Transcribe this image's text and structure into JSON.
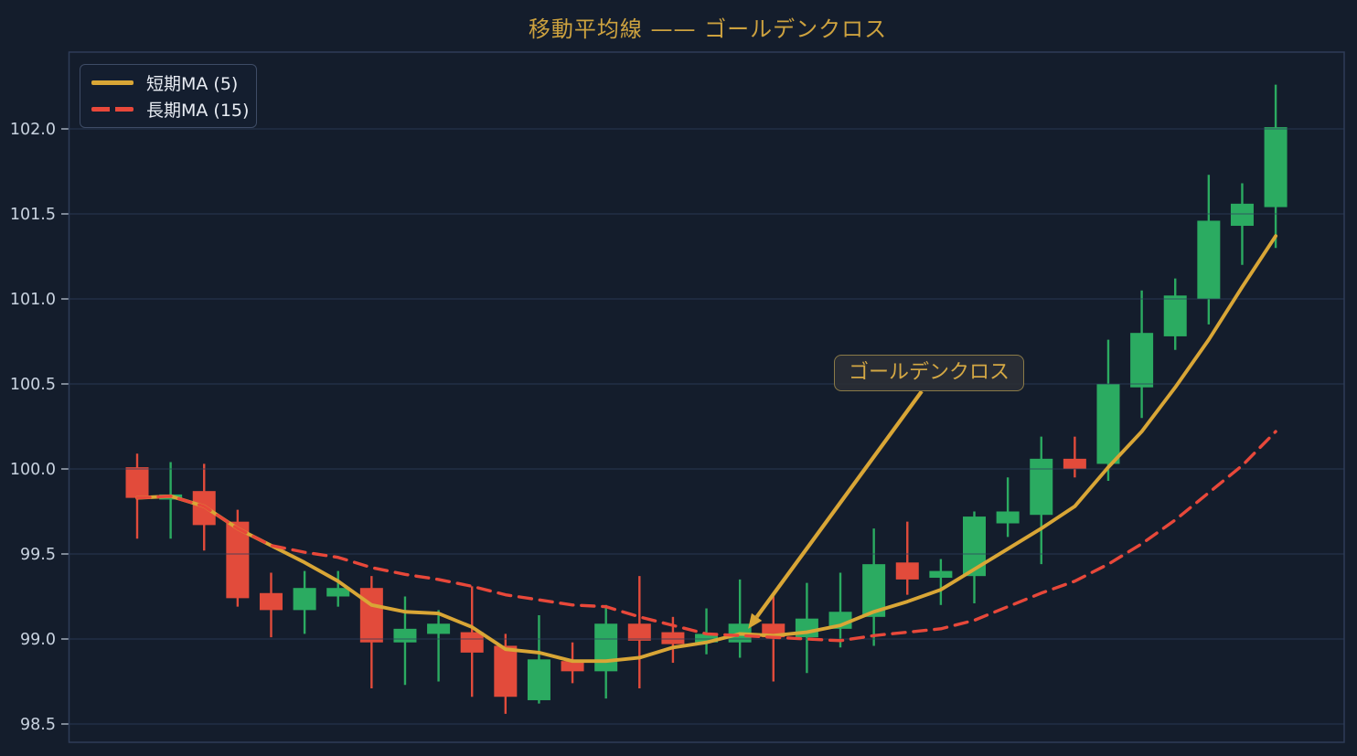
{
  "chart_data": {
    "type": "candlestick",
    "title": "移動平均線 —— ゴールデンクロス",
    "x_count": 35,
    "x_tick_labels": [],
    "y_ticks": [
      98.5,
      99.0,
      99.5,
      100.0,
      100.5,
      101.0,
      101.5,
      102.0
    ],
    "ylim": [
      98.39,
      102.45
    ],
    "grid": true,
    "legend_position": "upper-left",
    "colors": {
      "background": "#141d2c",
      "up": "#2bab61",
      "down": "#e24b3b",
      "ma_short": "#d9a636",
      "ma_long": "#e8483a",
      "title": "#cda23f"
    },
    "candles": [
      {
        "o": 100.01,
        "h": 100.09,
        "l": 99.59,
        "c": 99.83
      },
      {
        "o": 99.82,
        "h": 100.04,
        "l": 99.59,
        "c": 99.85
      },
      {
        "o": 99.87,
        "h": 100.03,
        "l": 99.52,
        "c": 99.67
      },
      {
        "o": 99.69,
        "h": 99.76,
        "l": 99.19,
        "c": 99.24
      },
      {
        "o": 99.27,
        "h": 99.39,
        "l": 99.01,
        "c": 99.17
      },
      {
        "o": 99.17,
        "h": 99.4,
        "l": 99.03,
        "c": 99.3
      },
      {
        "o": 99.25,
        "h": 99.4,
        "l": 99.19,
        "c": 99.3
      },
      {
        "o": 99.3,
        "h": 99.37,
        "l": 98.71,
        "c": 98.98
      },
      {
        "o": 98.98,
        "h": 99.25,
        "l": 98.73,
        "c": 99.06
      },
      {
        "o": 99.03,
        "h": 99.17,
        "l": 98.75,
        "c": 99.09
      },
      {
        "o": 99.04,
        "h": 99.31,
        "l": 98.66,
        "c": 98.92
      },
      {
        "o": 98.96,
        "h": 99.03,
        "l": 98.56,
        "c": 98.66
      },
      {
        "o": 98.64,
        "h": 99.14,
        "l": 98.62,
        "c": 98.88
      },
      {
        "o": 98.87,
        "h": 98.98,
        "l": 98.74,
        "c": 98.81
      },
      {
        "o": 98.81,
        "h": 99.2,
        "l": 98.65,
        "c": 99.09
      },
      {
        "o": 99.09,
        "h": 99.37,
        "l": 98.71,
        "c": 98.99
      },
      {
        "o": 99.04,
        "h": 99.13,
        "l": 98.86,
        "c": 98.97
      },
      {
        "o": 98.98,
        "h": 99.18,
        "l": 98.91,
        "c": 99.03
      },
      {
        "o": 98.98,
        "h": 99.35,
        "l": 98.89,
        "c": 99.09
      },
      {
        "o": 99.09,
        "h": 99.25,
        "l": 98.75,
        "c": 99.01
      },
      {
        "o": 99.01,
        "h": 99.33,
        "l": 98.8,
        "c": 99.12
      },
      {
        "o": 99.06,
        "h": 99.39,
        "l": 98.95,
        "c": 99.16
      },
      {
        "o": 99.13,
        "h": 99.65,
        "l": 98.96,
        "c": 99.44
      },
      {
        "o": 99.45,
        "h": 99.69,
        "l": 99.26,
        "c": 99.35
      },
      {
        "o": 99.36,
        "h": 99.47,
        "l": 99.2,
        "c": 99.4
      },
      {
        "o": 99.37,
        "h": 99.75,
        "l": 99.21,
        "c": 99.72
      },
      {
        "o": 99.68,
        "h": 99.95,
        "l": 99.6,
        "c": 99.75
      },
      {
        "o": 99.73,
        "h": 100.19,
        "l": 99.44,
        "c": 100.06
      },
      {
        "o": 100.06,
        "h": 100.19,
        "l": 99.95,
        "c": 100.0
      },
      {
        "o": 100.03,
        "h": 100.76,
        "l": 99.93,
        "c": 100.5
      },
      {
        "o": 100.48,
        "h": 101.05,
        "l": 100.3,
        "c": 100.8
      },
      {
        "o": 100.78,
        "h": 101.12,
        "l": 100.7,
        "c": 101.02
      },
      {
        "o": 101.0,
        "h": 101.73,
        "l": 100.85,
        "c": 101.46
      },
      {
        "o": 101.43,
        "h": 101.68,
        "l": 101.2,
        "c": 101.56
      },
      {
        "o": 101.54,
        "h": 102.26,
        "l": 101.3,
        "c": 102.01
      }
    ],
    "series": [
      {
        "name": "短期MA (5)",
        "style": "solid",
        "color": "#d9a636",
        "values": [
          99.83,
          99.84,
          99.78,
          99.65,
          99.55,
          99.45,
          99.34,
          99.2,
          99.16,
          99.15,
          99.07,
          98.94,
          98.92,
          98.87,
          98.87,
          98.89,
          98.95,
          98.98,
          99.03,
          99.02,
          99.04,
          99.08,
          99.16,
          99.22,
          99.29,
          99.41,
          99.53,
          99.65,
          99.78,
          100.01,
          100.22,
          100.48,
          100.76,
          101.07,
          101.37
        ]
      },
      {
        "name": "長期MA (15)",
        "style": "dashed",
        "color": "#e8483a",
        "values": [
          99.83,
          99.84,
          99.78,
          99.65,
          99.55,
          99.51,
          99.48,
          99.42,
          99.38,
          99.35,
          99.31,
          99.26,
          99.23,
          99.2,
          99.19,
          99.13,
          99.08,
          99.03,
          99.02,
          99.01,
          99.0,
          98.99,
          99.02,
          99.04,
          99.06,
          99.11,
          99.19,
          99.27,
          99.34,
          99.44,
          99.56,
          99.7,
          99.86,
          100.02,
          100.22
        ]
      }
    ],
    "annotation": {
      "text": "ゴールデンクロス",
      "target_index": 18,
      "target_price": 99.06
    }
  }
}
